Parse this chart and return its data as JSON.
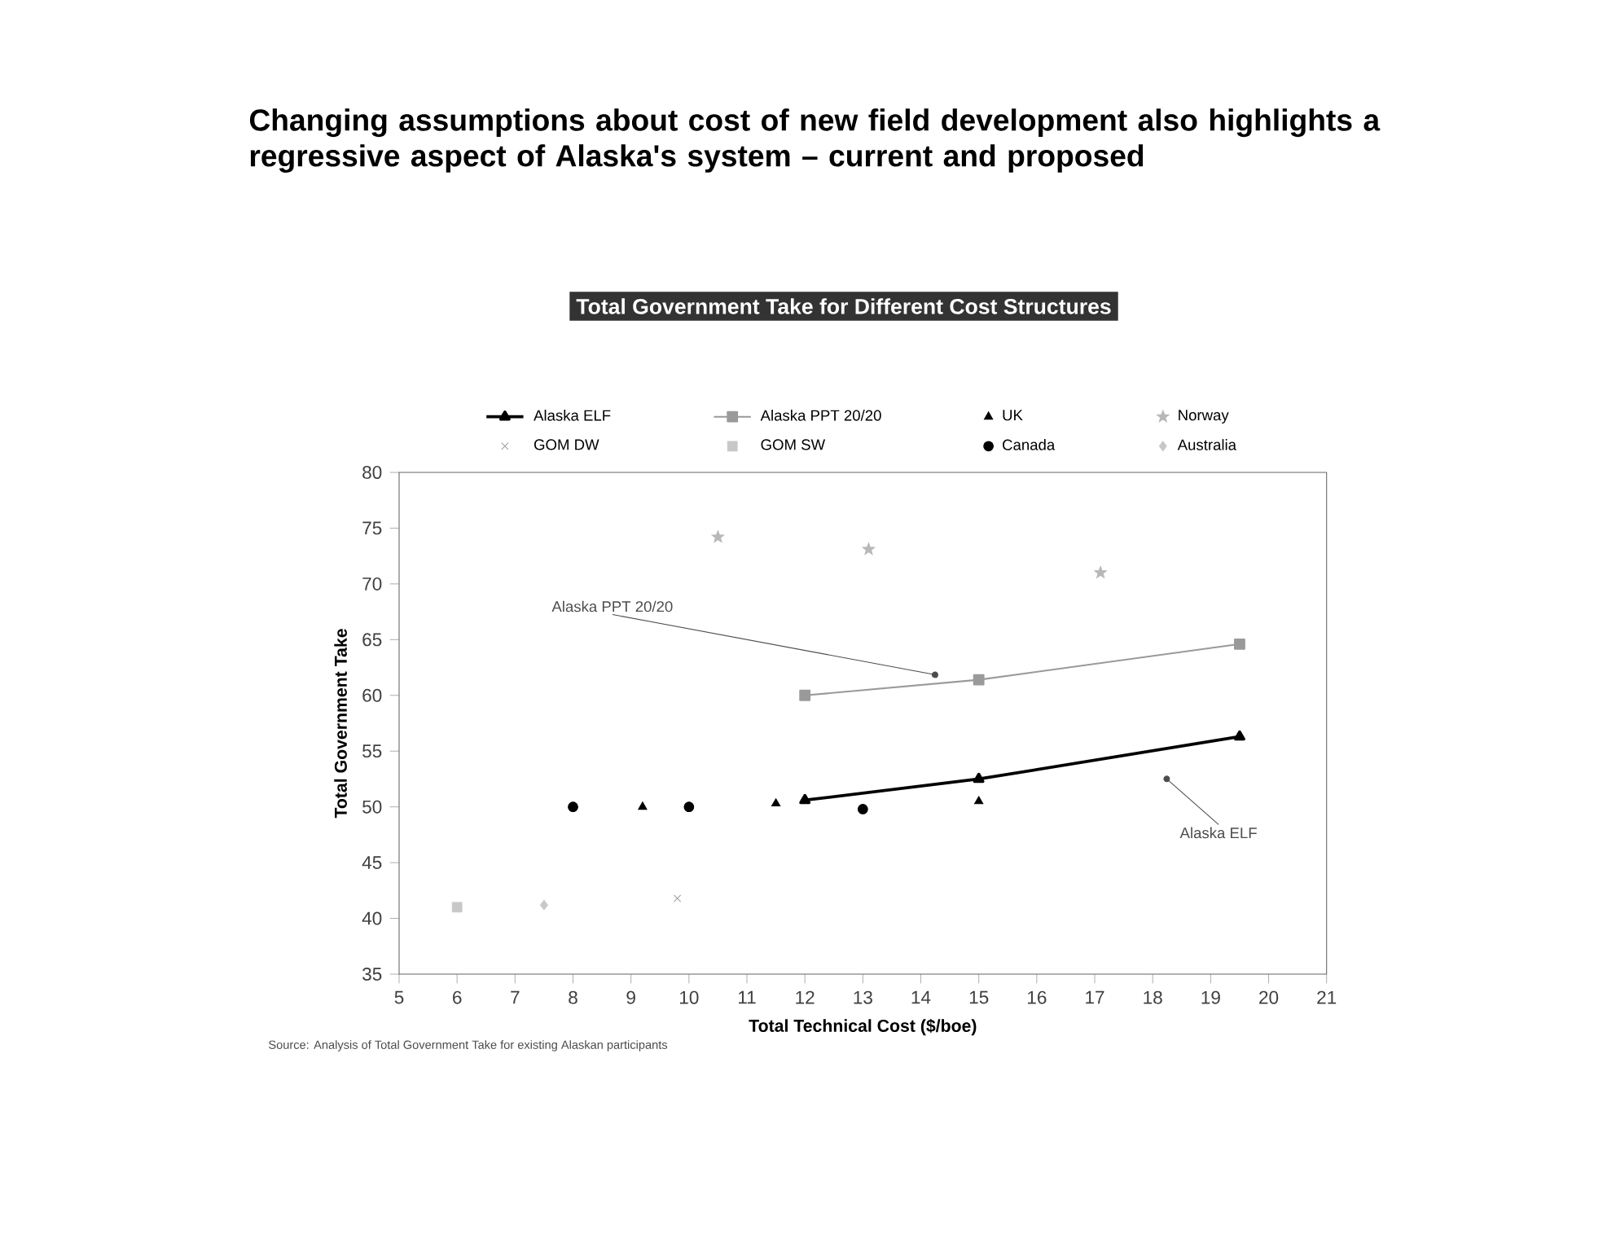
{
  "chart_data": {
    "type": "scatter",
    "title": "Changing assumptions about cost of new field development also highlights a regressive aspect of Alaska's system – current and proposed",
    "subtitle": "Total Government Take for Different Cost Structures",
    "xlabel": "Total Technical Cost ($/boe)",
    "ylabel": "Total Government Take",
    "xlim": [
      5,
      21
    ],
    "xticks": [
      5,
      6,
      7,
      8,
      9,
      10,
      11,
      12,
      13,
      14,
      15,
      16,
      17,
      18,
      19,
      20,
      21
    ],
    "ylim": [
      35,
      80
    ],
    "yticks": [
      35,
      40,
      45,
      50,
      55,
      60,
      65,
      70,
      75,
      80
    ],
    "legend": "top",
    "series": [
      {
        "name": "Alaska ELF",
        "type": "line",
        "color": "#000000",
        "marker": "triangle",
        "line_style": "solid",
        "x": [
          12,
          15,
          19.5
        ],
        "values": [
          50.6,
          52.5,
          56.3
        ]
      },
      {
        "name": "Alaska PPT 20/20",
        "type": "line",
        "color": "#9a9a9a",
        "marker": "square",
        "line_style": "solid",
        "x": [
          12,
          15,
          19.5
        ],
        "values": [
          60.0,
          61.4,
          64.6
        ]
      },
      {
        "name": "UK",
        "color": "#000000",
        "marker": "triangle",
        "x": [
          9.2,
          11.5,
          15
        ],
        "values": [
          50,
          50.3,
          50.5
        ]
      },
      {
        "name": "Norway",
        "color": "#b8b8b8",
        "marker": "star",
        "x": [
          10.5,
          13.1,
          17.1
        ],
        "values": [
          74.2,
          73.1,
          71
        ]
      },
      {
        "name": "GOM DW",
        "color": "#a0a0a0",
        "marker": "cross",
        "x": [
          9.8
        ],
        "values": [
          41.8
        ]
      },
      {
        "name": "GOM SW",
        "color": "#c8c8c8",
        "marker": "square",
        "x": [
          6
        ],
        "values": [
          41
        ]
      },
      {
        "name": "Canada",
        "color": "#000000",
        "marker": "circle",
        "x": [
          8,
          10,
          13
        ],
        "values": [
          50,
          50,
          49.8
        ]
      },
      {
        "name": "Australia",
        "color": "#c8c8c8",
        "marker": "diamond",
        "x": [
          7.5
        ],
        "values": [
          41.2
        ]
      }
    ],
    "annotations": [
      {
        "text": "Alaska PPT 20/20",
        "x": 14.3,
        "y": 61.8
      },
      {
        "text": "Alaska ELF",
        "x": 18.2,
        "y": 52.7
      },
      "Source: Analysis of Total Government Take for existing Alaskan participants"
    ]
  }
}
